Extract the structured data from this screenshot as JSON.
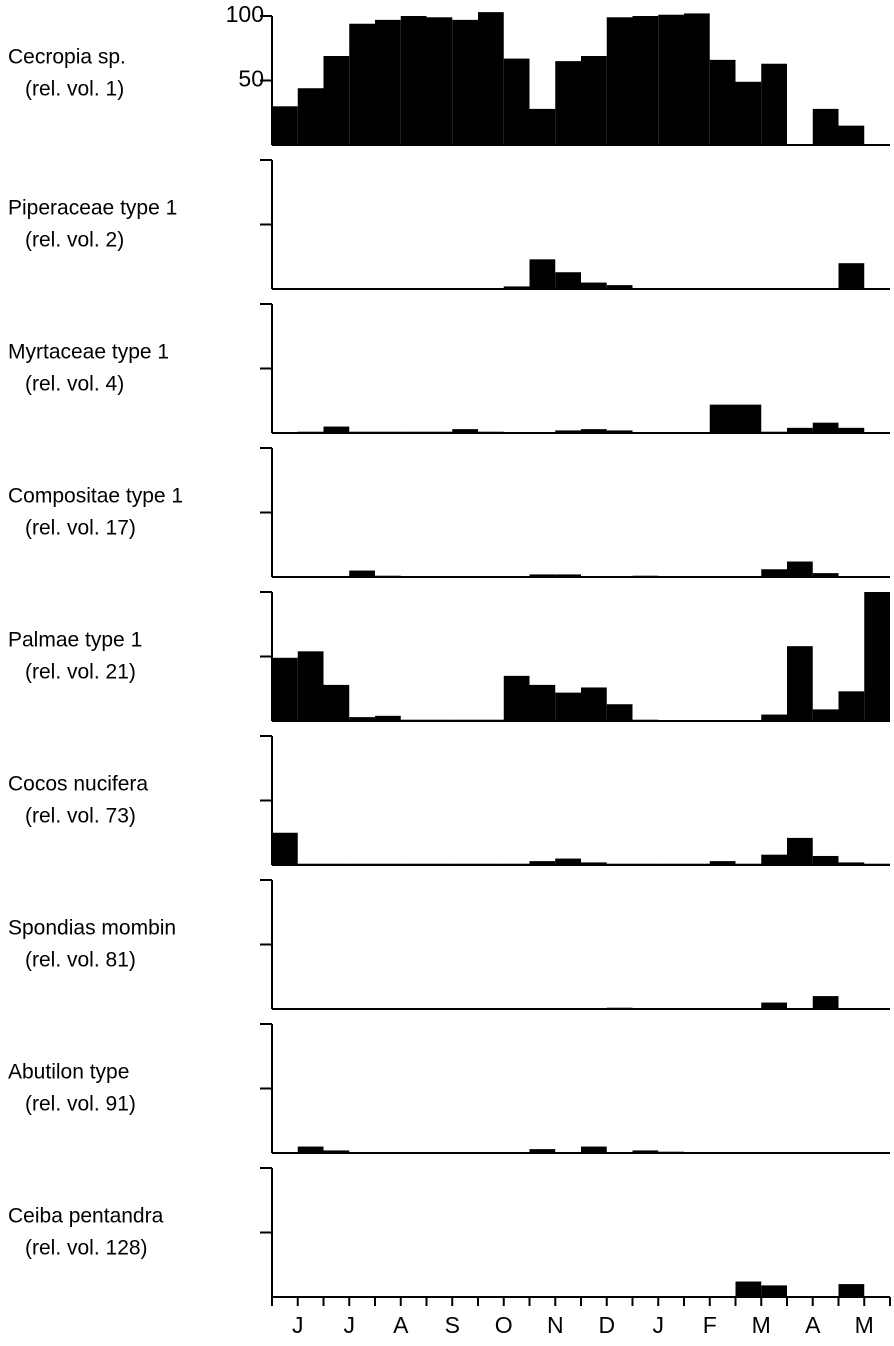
{
  "x_axis": {
    "categories": [
      "J",
      "J",
      "A",
      "S",
      "O",
      "N",
      "D",
      "J",
      "F",
      "M",
      "A",
      "M"
    ]
  },
  "chart_data": [
    {
      "type": "bar",
      "title": "Cecropia sp.",
      "subtitle": "(rel. vol. 1)",
      "color": "#000000",
      "ylim": [
        0,
        100
      ],
      "yticks": [
        50,
        100
      ],
      "tick_labels": true,
      "values": [
        30,
        44,
        69,
        94,
        97,
        100,
        99,
        97,
        103,
        67,
        28,
        65,
        69,
        99,
        100,
        101,
        102,
        66,
        49,
        63,
        0,
        28,
        15,
        0
      ]
    },
    {
      "type": "bar",
      "title": "Piperaceae type 1",
      "subtitle": "(rel. vol. 2)",
      "color": "#000000",
      "ylim": [
        0,
        100
      ],
      "yticks": [
        50,
        100
      ],
      "tick_labels": false,
      "values": [
        0,
        0,
        0,
        0,
        0,
        0,
        0,
        0,
        0,
        2,
        23,
        13,
        5,
        3,
        0,
        0,
        0,
        0,
        0,
        0,
        0,
        0,
        20,
        0
      ]
    },
    {
      "type": "bar",
      "title": "Myrtaceae type 1",
      "subtitle": "(rel. vol. 4)",
      "color": "#000000",
      "ylim": [
        0,
        100
      ],
      "yticks": [
        50,
        100
      ],
      "tick_labels": false,
      "values": [
        0,
        1,
        5,
        1,
        1,
        1,
        1,
        3,
        1,
        0,
        0,
        2,
        3,
        2,
        0,
        0,
        0,
        22,
        22,
        1,
        4,
        8,
        4,
        0
      ]
    },
    {
      "type": "bar",
      "title": "Compositae type 1",
      "subtitle": "(rel. vol. 17)",
      "color": "#000000",
      "ylim": [
        0,
        100
      ],
      "yticks": [
        50,
        100
      ],
      "tick_labels": false,
      "values": [
        0,
        0,
        0,
        5,
        1,
        0,
        0,
        0,
        0,
        0,
        2,
        2,
        0,
        0,
        1,
        0,
        0,
        0,
        0,
        6,
        12,
        3,
        0,
        0
      ]
    },
    {
      "type": "bar",
      "title": "Palmae type 1",
      "subtitle": "(rel. vol. 21)",
      "color": "#000000",
      "ylim": [
        0,
        100
      ],
      "yticks": [
        50,
        100
      ],
      "tick_labels": false,
      "values": [
        49,
        54,
        28,
        3,
        4,
        1,
        1,
        1,
        1,
        35,
        28,
        22,
        26,
        13,
        1,
        0,
        0,
        0,
        0,
        5,
        58,
        9,
        23,
        100
      ]
    },
    {
      "type": "bar",
      "title": "Cocos nucifera",
      "subtitle": "(rel. vol. 73)",
      "color": "#000000",
      "ylim": [
        0,
        100
      ],
      "yticks": [
        50,
        100
      ],
      "tick_labels": false,
      "values": [
        25,
        1,
        1,
        1,
        1,
        1,
        1,
        1,
        1,
        1,
        3,
        5,
        2,
        1,
        1,
        1,
        1,
        3,
        1,
        8,
        21,
        7,
        2,
        1
      ]
    },
    {
      "type": "bar",
      "title": "Spondias mombin",
      "subtitle": "(rel. vol. 81)",
      "color": "#000000",
      "ylim": [
        0,
        100
      ],
      "yticks": [
        50,
        100
      ],
      "tick_labels": false,
      "values": [
        0,
        0,
        0,
        0,
        0,
        0,
        0,
        0,
        0,
        0,
        0,
        0,
        0,
        1,
        0,
        0,
        0,
        0,
        0,
        5,
        0,
        10,
        0,
        0
      ]
    },
    {
      "type": "bar",
      "title": "Abutilon type",
      "subtitle": "(rel. vol. 91)",
      "color": "#000000",
      "ylim": [
        0,
        100
      ],
      "yticks": [
        50,
        100
      ],
      "tick_labels": false,
      "values": [
        0,
        5,
        2,
        0,
        0,
        0,
        0,
        0,
        0,
        0,
        3,
        0,
        5,
        0,
        2,
        1,
        0,
        0,
        0,
        0,
        0,
        0,
        0,
        0
      ]
    },
    {
      "type": "bar",
      "title": "Ceiba pentandra",
      "subtitle": "(rel. vol. 128)",
      "color": "#000000",
      "ylim": [
        0,
        100
      ],
      "yticks": [
        50,
        100
      ],
      "tick_labels": false,
      "values": [
        0,
        0,
        0,
        0,
        0,
        0,
        0,
        0,
        0,
        0,
        0,
        0,
        0,
        0,
        0,
        0,
        0,
        0,
        12,
        9,
        0,
        0,
        10,
        0
      ]
    }
  ]
}
